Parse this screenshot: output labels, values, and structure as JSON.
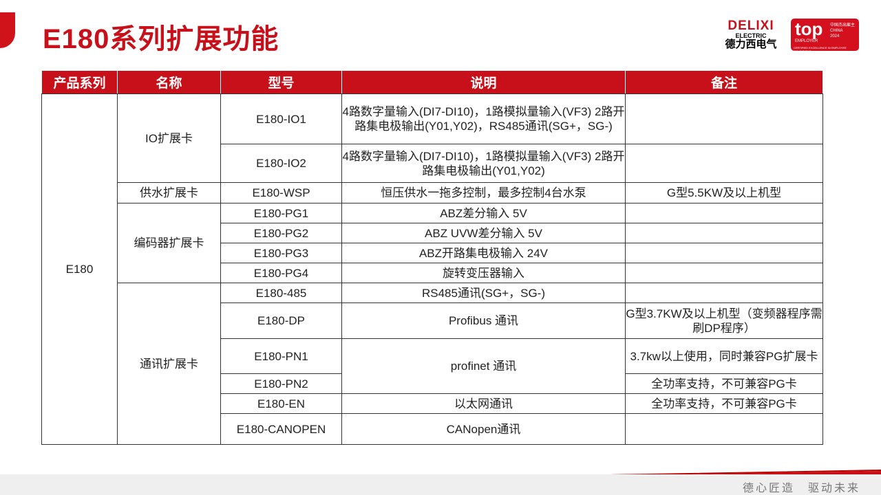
{
  "title": "E180系列扩展功能",
  "logo": {
    "brand": "DELIXI",
    "sub": "ELECTRIC",
    "cn": "德力西电气"
  },
  "badge": {
    "top": "top",
    "employer": "EMPLOYER",
    "region": "中国杰出雇主 CHINA",
    "year": "2024",
    "cert": "CERTIFIED EXCELLENCE IN EMPLOYEE CONDITIONS"
  },
  "colors": {
    "accent": "#c8101a"
  },
  "table": {
    "headers": [
      "产品系列",
      "名称",
      "型号",
      "说明",
      "备注"
    ],
    "series": "E180",
    "groups": [
      "IO扩展卡",
      "供水扩展卡",
      "编码器扩展卡",
      "通讯扩展卡"
    ],
    "rows": [
      {
        "model": "E180-IO1",
        "desc": "4路数字量输入(DI7-DI10)，1路模拟量输入(VF3) 2路开路集电极输出(Y01,Y02)，RS485通讯(SG+，SG-)",
        "note": ""
      },
      {
        "model": "E180-IO2",
        "desc": "4路数字量输入(DI7-DI10)，1路模拟量输入(VF3) 2路开路集电极输出(Y01,Y02)",
        "note": ""
      },
      {
        "model": "E180-WSP",
        "desc": "恒压供水一拖多控制，最多控制4台水泵",
        "note": "G型5.5KW及以上机型"
      },
      {
        "model": "E180-PG1",
        "desc": "ABZ差分输入 5V",
        "note": ""
      },
      {
        "model": "E180-PG2",
        "desc": "ABZ UVW差分输入 5V",
        "note": ""
      },
      {
        "model": "E180-PG3",
        "desc": "ABZ开路集电极输入 24V",
        "note": ""
      },
      {
        "model": "E180-PG4",
        "desc": "旋转变压器输入",
        "note": ""
      },
      {
        "model": "E180-485",
        "desc": "RS485通讯(SG+，SG-)",
        "note": ""
      },
      {
        "model": "E180-DP",
        "desc": "Profibus 通讯",
        "note": "G型3.7KW及以上机型（变频器程序需刷DP程序）"
      },
      {
        "model": "E180-PN1",
        "desc": "profinet 通讯",
        "note": "3.7kw以上使用，同时兼容PG扩展卡"
      },
      {
        "model": "E180-PN2",
        "desc": "",
        "note": "全功率支持，不可兼容PG卡"
      },
      {
        "model": "E180-EN",
        "desc": "以太网通讯",
        "note": "全功率支持，不可兼容PG卡"
      },
      {
        "model": "E180-CANOPEN",
        "desc": "CANopen通讯",
        "note": ""
      }
    ]
  },
  "footer": {
    "slogan": "德心匠造　驱动未来"
  }
}
